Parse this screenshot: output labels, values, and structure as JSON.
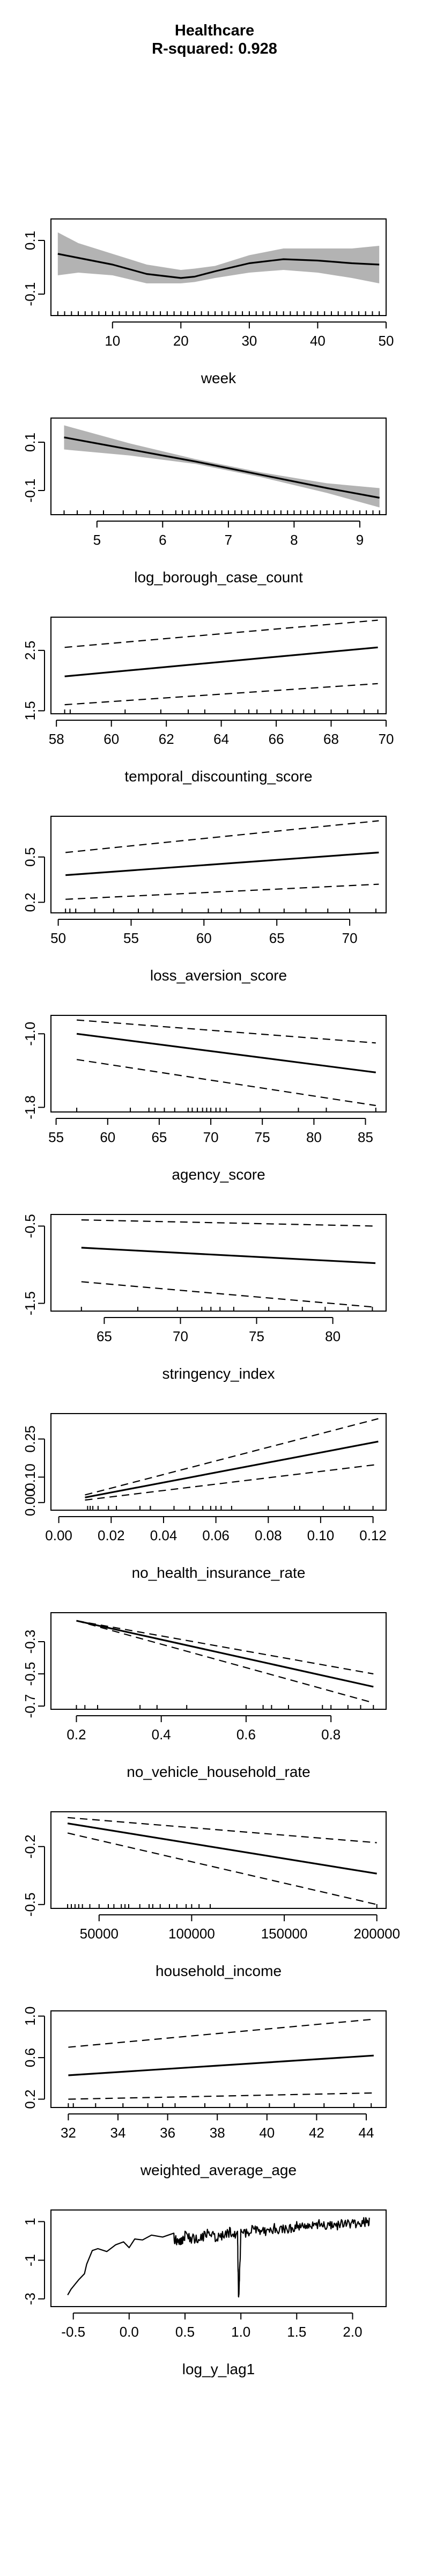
{
  "figure": {
    "title": "Healthcare",
    "subtitle": "R-squared: 0.928"
  },
  "chart_data": [
    {
      "type": "line",
      "xlabel": "week",
      "xlim": [
        1,
        50
      ],
      "ylim": [
        -0.18,
        0.18
      ],
      "xticks": [
        10,
        20,
        30,
        40,
        50
      ],
      "xtick_labels": [
        "10",
        "20",
        "30",
        "40",
        "50"
      ],
      "yticks": [
        -0.1,
        0.1
      ],
      "ytick_labels": [
        "-0.1",
        "0.1"
      ],
      "fit": {
        "x": [
          2,
          5,
          10,
          15,
          20,
          22,
          25,
          30,
          35,
          40,
          45,
          49
        ],
        "y": [
          0.05,
          0.035,
          0.01,
          -0.025,
          -0.04,
          -0.035,
          -0.015,
          0.015,
          0.03,
          0.025,
          0.015,
          0.01
        ]
      },
      "band": {
        "x": [
          2,
          5,
          10,
          15,
          20,
          22,
          25,
          30,
          35,
          40,
          45,
          49
        ],
        "lower": [
          -0.03,
          -0.02,
          -0.03,
          -0.06,
          -0.06,
          -0.055,
          -0.04,
          -0.02,
          -0.01,
          -0.02,
          -0.04,
          -0.06
        ],
        "upper": [
          0.13,
          0.09,
          0.05,
          0.01,
          -0.01,
          -0.005,
          0.005,
          0.045,
          0.07,
          0.07,
          0.07,
          0.08
        ]
      },
      "rug": [
        2,
        3,
        4,
        5,
        6,
        7,
        8,
        9,
        10,
        11,
        12,
        13,
        14,
        15,
        16,
        17,
        18,
        19,
        20,
        21,
        22,
        23,
        24,
        25,
        26,
        27,
        28,
        29,
        30,
        31,
        32,
        33,
        34,
        35,
        36,
        37,
        38,
        39,
        40,
        41,
        42,
        43,
        44,
        45,
        46,
        47,
        48,
        49
      ]
    },
    {
      "type": "line",
      "xlabel": "log_borough_case_count",
      "xlim": [
        4.3,
        9.4
      ],
      "ylim": [
        -0.2,
        0.2
      ],
      "xticks": [
        5,
        6,
        7,
        8,
        9
      ],
      "xtick_labels": [
        "5",
        "6",
        "7",
        "8",
        "9"
      ],
      "yticks": [
        -0.1,
        0.1
      ],
      "ytick_labels": [
        "-0.1",
        "0.1"
      ],
      "fit": {
        "x": [
          4.5,
          5.5,
          6.5,
          7.5,
          8.5,
          9.3
        ],
        "y": [
          0.12,
          0.07,
          0.02,
          -0.035,
          -0.09,
          -0.13
        ]
      },
      "band": {
        "x": [
          4.5,
          5.5,
          6.5,
          7.5,
          8.5,
          9.3
        ],
        "lower": [
          0.07,
          0.045,
          0.01,
          -0.045,
          -0.11,
          -0.17
        ],
        "upper": [
          0.17,
          0.095,
          0.03,
          -0.025,
          -0.07,
          -0.09
        ]
      },
      "rug": [
        4.5,
        4.7,
        4.9,
        5.1,
        5.4,
        5.6,
        5.8,
        6.0,
        6.2,
        6.3,
        6.4,
        6.5,
        6.6,
        6.7,
        6.8,
        6.9,
        7.0,
        7.1,
        7.2,
        7.3,
        7.4,
        7.5,
        7.6,
        7.7,
        7.8,
        7.9,
        8.0,
        8.1,
        8.2,
        8.3,
        8.4,
        8.5,
        8.6,
        8.7,
        8.8,
        8.9,
        9.0,
        9.1,
        9.2,
        9.3
      ]
    },
    {
      "type": "line",
      "xlabel": "temporal_discounting_score",
      "xlim": [
        57.8,
        70
      ],
      "ylim": [
        1.45,
        3.05
      ],
      "xticks": [
        58,
        60,
        62,
        64,
        66,
        68,
        70
      ],
      "xtick_labels": [
        "58",
        "60",
        "62",
        "64",
        "66",
        "68",
        "70"
      ],
      "yticks": [
        1.5,
        2.5
      ],
      "ytick_labels": [
        "1.5",
        "2.5"
      ],
      "fit": {
        "x": [
          58.3,
          69.7
        ],
        "y": [
          2.07,
          2.55
        ]
      },
      "lower": {
        "x": [
          58.3,
          69.7
        ],
        "y": [
          1.6,
          1.95
        ]
      },
      "upper": {
        "x": [
          58.3,
          69.7
        ],
        "y": [
          2.55,
          3.0
        ]
      },
      "rug": [
        58.3,
        58.5,
        60.5,
        61.8,
        62.8,
        63.4,
        64.5,
        65.0,
        65.3,
        65.8,
        66.2,
        66.6,
        67.0,
        67.4,
        68.0,
        68.6,
        69.2,
        69.7
      ]
    },
    {
      "type": "line",
      "xlabel": "loss_aversion_score",
      "xlim": [
        49.5,
        72.5
      ],
      "ylim": [
        0.13,
        0.77
      ],
      "xticks": [
        50,
        55,
        60,
        65,
        70
      ],
      "xtick_labels": [
        "50",
        "55",
        "60",
        "65",
        "70"
      ],
      "yticks": [
        0.2,
        0.5
      ],
      "ytick_labels": [
        "0.2",
        "0.5"
      ],
      "fit": {
        "x": [
          50.5,
          72
        ],
        "y": [
          0.38,
          0.53
        ]
      },
      "lower": {
        "x": [
          50.5,
          72
        ],
        "y": [
          0.22,
          0.32
        ]
      },
      "upper": {
        "x": [
          50.5,
          72
        ],
        "y": [
          0.53,
          0.74
        ]
      },
      "rug": [
        50.5,
        50.8,
        51.2,
        52.5,
        53.8,
        55.5,
        56.5,
        58.5,
        60.3,
        61.2,
        62.5,
        63.8,
        65.5,
        67.0,
        68.5,
        70.0,
        71.8
      ]
    },
    {
      "type": "line",
      "xlabel": "agency_score",
      "xlim": [
        54.5,
        87
      ],
      "ylim": [
        -1.85,
        -0.8
      ],
      "xticks": [
        55,
        60,
        65,
        70,
        75,
        80,
        85
      ],
      "xtick_labels": [
        "55",
        "60",
        "65",
        "70",
        "75",
        "80",
        "85"
      ],
      "yticks": [
        -1.8,
        -1.0
      ],
      "ytick_labels": [
        "-1.8",
        "-1.0"
      ],
      "fit": {
        "x": [
          57,
          86
        ],
        "y": [
          -1.0,
          -1.42
        ]
      },
      "lower": {
        "x": [
          57,
          86
        ],
        "y": [
          -1.28,
          -1.78
        ]
      },
      "upper": {
        "x": [
          57,
          86
        ],
        "y": [
          -0.85,
          -1.1
        ]
      },
      "rug": [
        57,
        62.2,
        64.0,
        64.6,
        65.5,
        66.5,
        67.8,
        68.2,
        68.7,
        69.2,
        69.6,
        70.0,
        70.5,
        70.9,
        71.5,
        74.8,
        78.5,
        81.2,
        86
      ]
    },
    {
      "type": "line",
      "xlabel": "stringency_index",
      "xlim": [
        61.5,
        83.5
      ],
      "ylim": [
        -1.6,
        -0.35
      ],
      "xticks": [
        65,
        70,
        75,
        80
      ],
      "xtick_labels": [
        "65",
        "70",
        "75",
        "80"
      ],
      "yticks": [
        -1.5,
        -0.5
      ],
      "ytick_labels": [
        "-1.5",
        "-0.5"
      ],
      "fit": {
        "x": [
          63.5,
          82.8
        ],
        "y": [
          -0.78,
          -0.98
        ]
      },
      "lower": {
        "x": [
          63.5,
          82.8
        ],
        "y": [
          -1.22,
          -1.55
        ]
      },
      "upper": {
        "x": [
          63.5,
          82.8
        ],
        "y": [
          -0.42,
          -0.5
        ]
      },
      "rug": [
        63.5,
        67.2,
        69.8,
        71.4,
        72.0,
        72.6,
        73.5,
        75.8,
        78.0,
        79.5,
        81.0,
        82.6
      ]
    },
    {
      "type": "line",
      "xlabel": "no_health_insurance_rate",
      "xlim": [
        -0.003,
        0.125
      ],
      "ylim": [
        -0.03,
        0.35
      ],
      "xticks": [
        0.0,
        0.02,
        0.04,
        0.06,
        0.08,
        0.1,
        0.12
      ],
      "xtick_labels": [
        "0.00",
        "0.02",
        "0.04",
        "0.06",
        "0.08",
        "0.10",
        "0.12"
      ],
      "yticks": [
        0.0,
        0.1,
        0.25
      ],
      "ytick_labels": [
        "0.00",
        "0.10",
        "0.25"
      ],
      "fit": {
        "x": [
          0.01,
          0.122
        ],
        "y": [
          0.02,
          0.24
        ]
      },
      "lower": {
        "x": [
          0.01,
          0.122
        ],
        "y": [
          0.01,
          0.15
        ]
      },
      "upper": {
        "x": [
          0.01,
          0.122
        ],
        "y": [
          0.03,
          0.33
        ]
      },
      "rug": [
        0.011,
        0.012,
        0.013,
        0.015,
        0.019,
        0.022,
        0.031,
        0.035,
        0.044,
        0.05,
        0.055,
        0.058,
        0.06,
        0.062,
        0.066,
        0.08,
        0.09,
        0.092,
        0.101,
        0.109,
        0.111,
        0.12
      ]
    },
    {
      "type": "line",
      "xlabel": "no_vehicle_household_rate",
      "xlim": [
        0.14,
        0.93
      ],
      "ylim": [
        -0.72,
        -0.12
      ],
      "xticks": [
        0.2,
        0.4,
        0.6,
        0.8
      ],
      "xtick_labels": [
        "0.2",
        "0.4",
        "0.6",
        "0.8"
      ],
      "yticks": [
        -0.7,
        -0.5,
        -0.3
      ],
      "ytick_labels": [
        "-0.7",
        "-0.5",
        "-0.3"
      ],
      "fit": {
        "x": [
          0.2,
          0.9
        ],
        "y": [
          -0.17,
          -0.58
        ]
      },
      "lower": {
        "x": [
          0.2,
          0.9
        ],
        "y": [
          -0.17,
          -0.68
        ]
      },
      "upper": {
        "x": [
          0.2,
          0.9
        ],
        "y": [
          -0.17,
          -0.5
        ]
      },
      "rug": [
        0.2,
        0.22,
        0.25,
        0.35,
        0.39,
        0.46,
        0.6,
        0.64,
        0.66,
        0.7,
        0.78,
        0.8,
        0.84,
        0.87,
        0.9
      ]
    },
    {
      "type": "line",
      "xlabel": "household_income",
      "xlim": [
        24000,
        205000
      ],
      "ylim": [
        -0.52,
        -0.02
      ],
      "xticks": [
        50000,
        100000,
        150000,
        200000
      ],
      "xtick_labels": [
        "50000",
        "100000",
        "150000",
        "200000"
      ],
      "yticks": [
        -0.5,
        -0.2
      ],
      "ytick_labels": [
        "-0.5",
        "-0.2"
      ],
      "fit": {
        "x": [
          33000,
          200000
        ],
        "y": [
          -0.08,
          -0.34
        ]
      },
      "lower": {
        "x": [
          33000,
          200000
        ],
        "y": [
          -0.13,
          -0.5
        ]
      },
      "upper": {
        "x": [
          33000,
          200000
        ],
        "y": [
          -0.05,
          -0.18
        ]
      },
      "rug": [
        33000,
        35000,
        37000,
        39000,
        41000,
        45000,
        50000,
        55000,
        58000,
        62000,
        64000,
        66000,
        72000,
        77000,
        79000,
        83000,
        88000,
        92000,
        97000,
        100000,
        104000,
        110000,
        200000
      ]
    },
    {
      "type": "line",
      "xlabel": "weighted_average_age",
      "xlim": [
        31.3,
        44.8
      ],
      "ylim": [
        0.12,
        1.05
      ],
      "xticks": [
        32,
        34,
        36,
        38,
        40,
        42,
        44
      ],
      "xtick_labels": [
        "32",
        "34",
        "36",
        "38",
        "40",
        "42",
        "44"
      ],
      "yticks": [
        0.2,
        0.6,
        1.0
      ],
      "ytick_labels": [
        "0.2",
        "0.6",
        "1.0"
      ],
      "fit": {
        "x": [
          32,
          44.3
        ],
        "y": [
          0.43,
          0.62
        ]
      },
      "lower": {
        "x": [
          32,
          44.3
        ],
        "y": [
          0.2,
          0.26
        ]
      },
      "upper": {
        "x": [
          32,
          44.3
        ],
        "y": [
          0.7,
          0.97
        ]
      },
      "rug": [
        32,
        32.2,
        33.1,
        34.2,
        35.2,
        35.8,
        36.3,
        37.5,
        38.5,
        39.2,
        40.1,
        41.1,
        42.3,
        43.5,
        44.2
      ]
    },
    {
      "type": "line",
      "xlabel": "log_y_lag1",
      "xlim": [
        -0.7,
        2.3
      ],
      "ylim": [
        -3.4,
        1.6
      ],
      "xticks": [
        -0.5,
        0.0,
        0.5,
        1.0,
        1.5,
        2.0
      ],
      "xtick_labels": [
        "-0.5",
        "0.0",
        "0.5",
        "1.0",
        "1.5",
        "2.0"
      ],
      "yticks": [
        -3,
        -1,
        1
      ],
      "ytick_labels": [
        "-3",
        "-1",
        "1"
      ],
      "fit": {
        "x": [
          -0.55,
          -0.52,
          -0.45,
          -0.4,
          -0.38,
          -0.33,
          -0.28,
          -0.2,
          -0.12,
          -0.05,
          0.0,
          0.05,
          0.12,
          0.2,
          0.3,
          0.4,
          0.45,
          0.5,
          0.6,
          0.7,
          0.8,
          0.9,
          0.97,
          0.98,
          1.0,
          1.1,
          1.2,
          1.3,
          1.4,
          1.5,
          1.6,
          1.7,
          1.8,
          1.9,
          2.0,
          2.1,
          2.15
        ],
        "y": [
          -2.8,
          -2.5,
          -2.0,
          -1.7,
          -1.2,
          -0.5,
          -0.4,
          -0.55,
          -0.2,
          -0.05,
          -0.35,
          0.1,
          0.05,
          0.3,
          0.2,
          0.4,
          0.1,
          0.5,
          0.3,
          0.6,
          0.4,
          0.7,
          0.5,
          -2.9,
          0.6,
          0.8,
          0.7,
          0.9,
          0.8,
          1.0,
          0.9,
          1.1,
          1.0,
          1.1,
          1.1,
          1.2,
          1.2
        ],
        "noise_after": 0.4,
        "noise_amplitude": 0.5
      },
      "rug": []
    }
  ]
}
